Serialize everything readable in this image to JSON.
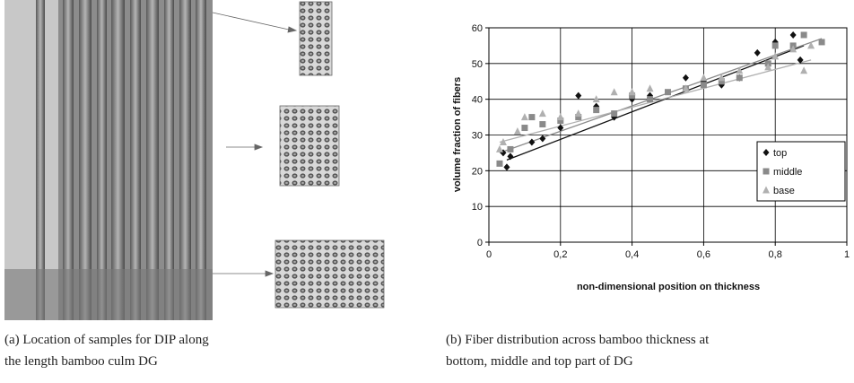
{
  "captions": [
    [
      "(a) Location of samples for DIP along",
      "the length bamboo culm DG"
    ],
    [
      "(b) Fiber distribution across bamboo thickness at",
      "bottom, middle and top part of DG"
    ]
  ],
  "chart_data": {
    "type": "scatter",
    "x_label": "non-dimensional position on thickness",
    "y_label": "volume fraction of fibers",
    "xlim": [
      0,
      1
    ],
    "ylim": [
      0,
      60
    ],
    "xticks": [
      0,
      {
        "value": 0.2,
        "label": "0,2"
      },
      {
        "value": 0.4,
        "label": "0,4"
      },
      {
        "value": 0.6,
        "label": "0,6"
      },
      {
        "value": 0.8,
        "label": "0,8"
      },
      1
    ],
    "yticks": [
      0,
      10,
      20,
      30,
      40,
      50,
      60
    ],
    "grid": true,
    "legend": "right",
    "series": [
      {
        "name": "top",
        "color": "#111111",
        "marker": "diamond",
        "x": [
          0.04,
          0.05,
          0.06,
          0.12,
          0.15,
          0.2,
          0.25,
          0.3,
          0.35,
          0.4,
          0.45,
          0.55,
          0.6,
          0.65,
          0.7,
          0.75,
          0.8,
          0.85,
          0.87
        ],
        "values": [
          25,
          21,
          24,
          28,
          29,
          32,
          41,
          38,
          35,
          40,
          41,
          46,
          45,
          44,
          46,
          53,
          56,
          58,
          51
        ],
        "trend_x": [
          0.05,
          0.88
        ],
        "trend_values": [
          23,
          55
        ]
      },
      {
        "name": "middle",
        "color": "#8a8a8a",
        "marker": "square",
        "x": [
          0.03,
          0.06,
          0.1,
          0.12,
          0.15,
          0.2,
          0.25,
          0.3,
          0.35,
          0.4,
          0.45,
          0.5,
          0.55,
          0.6,
          0.65,
          0.7,
          0.78,
          0.8,
          0.85,
          0.88,
          0.93
        ],
        "values": [
          22,
          26,
          32,
          35,
          33,
          34,
          35,
          37,
          36,
          41,
          40,
          42,
          43,
          44,
          45,
          46,
          50,
          55,
          55,
          58,
          56
        ],
        "trend_x": [
          0.03,
          0.93
        ],
        "trend_values": [
          25,
          57
        ]
      },
      {
        "name": "base",
        "color": "#b0b0b0",
        "marker": "triangle",
        "x": [
          0.03,
          0.04,
          0.08,
          0.1,
          0.15,
          0.2,
          0.25,
          0.3,
          0.35,
          0.4,
          0.45,
          0.55,
          0.6,
          0.65,
          0.7,
          0.78,
          0.8,
          0.85,
          0.88,
          0.9
        ],
        "values": [
          26,
          28,
          31,
          35,
          36,
          35,
          36,
          40,
          42,
          42,
          43,
          43,
          46,
          46,
          48,
          49,
          52,
          54,
          48,
          55
        ],
        "trend_x": [
          0.03,
          0.9
        ],
        "trend_values": [
          28,
          51
        ]
      }
    ]
  }
}
